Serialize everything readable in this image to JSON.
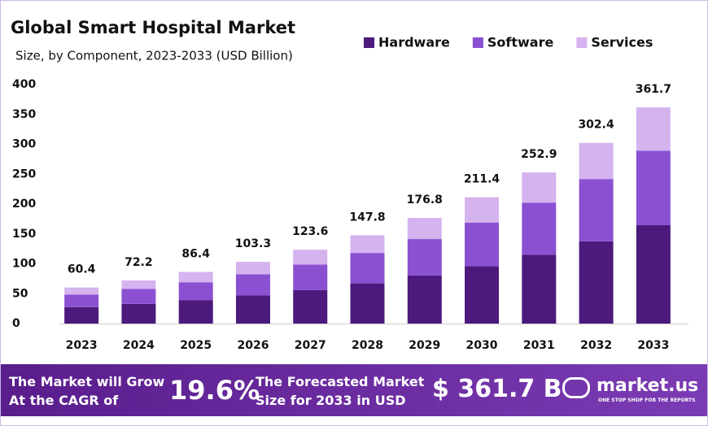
{
  "chart_data": {
    "type": "stacked-bar",
    "title": "Global Smart Hospital Market",
    "subtitle": "Size, by Component, 2023-2033 (USD Billion)",
    "categories": [
      "2023",
      "2024",
      "2025",
      "2026",
      "2027",
      "2028",
      "2029",
      "2030",
      "2031",
      "2032",
      "2033"
    ],
    "series": [
      {
        "name": "Hardware",
        "color": "#4b1a7c",
        "values": [
          27.5,
          32.9,
          39.3,
          47.0,
          56.2,
          67.2,
          80.4,
          96.2,
          115.1,
          137.6,
          164.6
        ]
      },
      {
        "name": "Software",
        "color": "#8b50d2",
        "values": [
          20.8,
          24.9,
          29.8,
          35.6,
          42.6,
          51.0,
          61.0,
          72.9,
          87.3,
          104.3,
          124.8
        ]
      },
      {
        "name": "Services",
        "color": "#d4b3ef",
        "values": [
          12.1,
          14.4,
          17.3,
          20.7,
          24.8,
          29.6,
          35.4,
          42.3,
          50.5,
          60.5,
          72.3
        ]
      }
    ],
    "totals": [
      60.4,
      72.2,
      86.4,
      103.3,
      123.6,
      147.8,
      176.8,
      211.4,
      252.9,
      302.4,
      361.7
    ],
    "ylim": [
      0,
      400
    ],
    "yticks": [
      0,
      50,
      100,
      150,
      200,
      250,
      300,
      350,
      400
    ],
    "grid": false,
    "legend": "top-right"
  },
  "footer": {
    "cagr_text_1": "The Market will Grow",
    "cagr_text_2": "At the CAGR of",
    "cagr": "19.6%",
    "forecast_text_1": "The Forecasted Market",
    "forecast_text_2": "Size for 2033 in USD",
    "forecast": "$ 361.7 B",
    "brand": "market.us",
    "tagline": "ONE STOP SHOP FOR THE REPORTS"
  }
}
